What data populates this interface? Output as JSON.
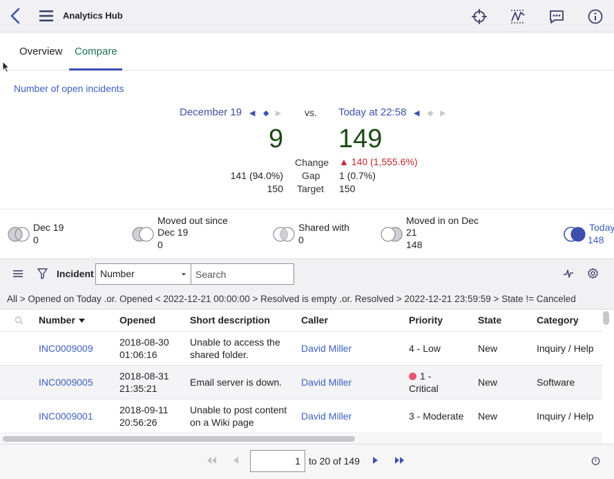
{
  "app": {
    "title": "Analytics Hub"
  },
  "tabs": [
    {
      "label": "Overview",
      "active": false
    },
    {
      "label": "Compare",
      "active": true
    }
  ],
  "compare": {
    "metric_title": "Number of open incidents",
    "left_date": "December 19",
    "right_date": "Today at 22:58",
    "vs": "vs.",
    "left_value": "9",
    "right_value": "149",
    "labels": {
      "change": "Change",
      "gap": "Gap",
      "target": "Target"
    },
    "right_change": "▲ 140 (1,555.6%)",
    "left_gap": "141 (94.0%)",
    "right_gap": "1 (0.7%)",
    "left_target": "150",
    "right_target": "150"
  },
  "venn": [
    {
      "label": "Dec 19",
      "count": "0"
    },
    {
      "label": "Moved out since Dec 19",
      "count": "0"
    },
    {
      "label": "Shared with",
      "count": "0"
    },
    {
      "label": "Moved in on Dec 21",
      "count": "148"
    },
    {
      "label": "Today",
      "count": "148",
      "active": true
    }
  ],
  "list": {
    "title": "Incident",
    "field_select": "Number",
    "search_placeholder": "Search",
    "breadcrumb": "All > Opened on Today .or. Opened < 2022-12-21 00:00:00 > Resolved is empty .or. Resolved > 2022-12-21 23:59:59 > State != Canceled",
    "columns": [
      "Number",
      "Opened",
      "Short description",
      "Caller",
      "Priority",
      "State",
      "Category"
    ],
    "rows": [
      {
        "number": "INC0009009",
        "opened_date": "2018-08-30",
        "opened_time": "01:06:16",
        "desc1": "Unable to access the",
        "desc2": "shared folder.",
        "caller": "David Miller",
        "priority1": "4 - Low",
        "priority2": "",
        "state": "New",
        "category": "Inquiry / Help"
      },
      {
        "number": "INC0009005",
        "opened_date": "2018-08-31",
        "opened_time": "21:35:21",
        "desc1": "Email server is down.",
        "desc2": "",
        "caller": "David Miller",
        "priority1": "1 -",
        "priority2": "Critical",
        "state": "New",
        "category": "Software"
      },
      {
        "number": "INC0009001",
        "opened_date": "2018-09-11",
        "opened_time": "20:56:26",
        "desc1": "Unable to post content",
        "desc2": "on a Wiki page",
        "caller": "David Miller",
        "priority1": "3 - Moderate",
        "priority2": "",
        "state": "New",
        "category": "Inquiry / Help"
      }
    ]
  },
  "pager": {
    "page": "1",
    "info": "to 20 of 149"
  },
  "colors": {
    "accent": "#3b50a8",
    "tab_active": "#1d6f55",
    "value": "#1c4a15",
    "negative": "#c3262b",
    "critical": "#e5576b"
  }
}
